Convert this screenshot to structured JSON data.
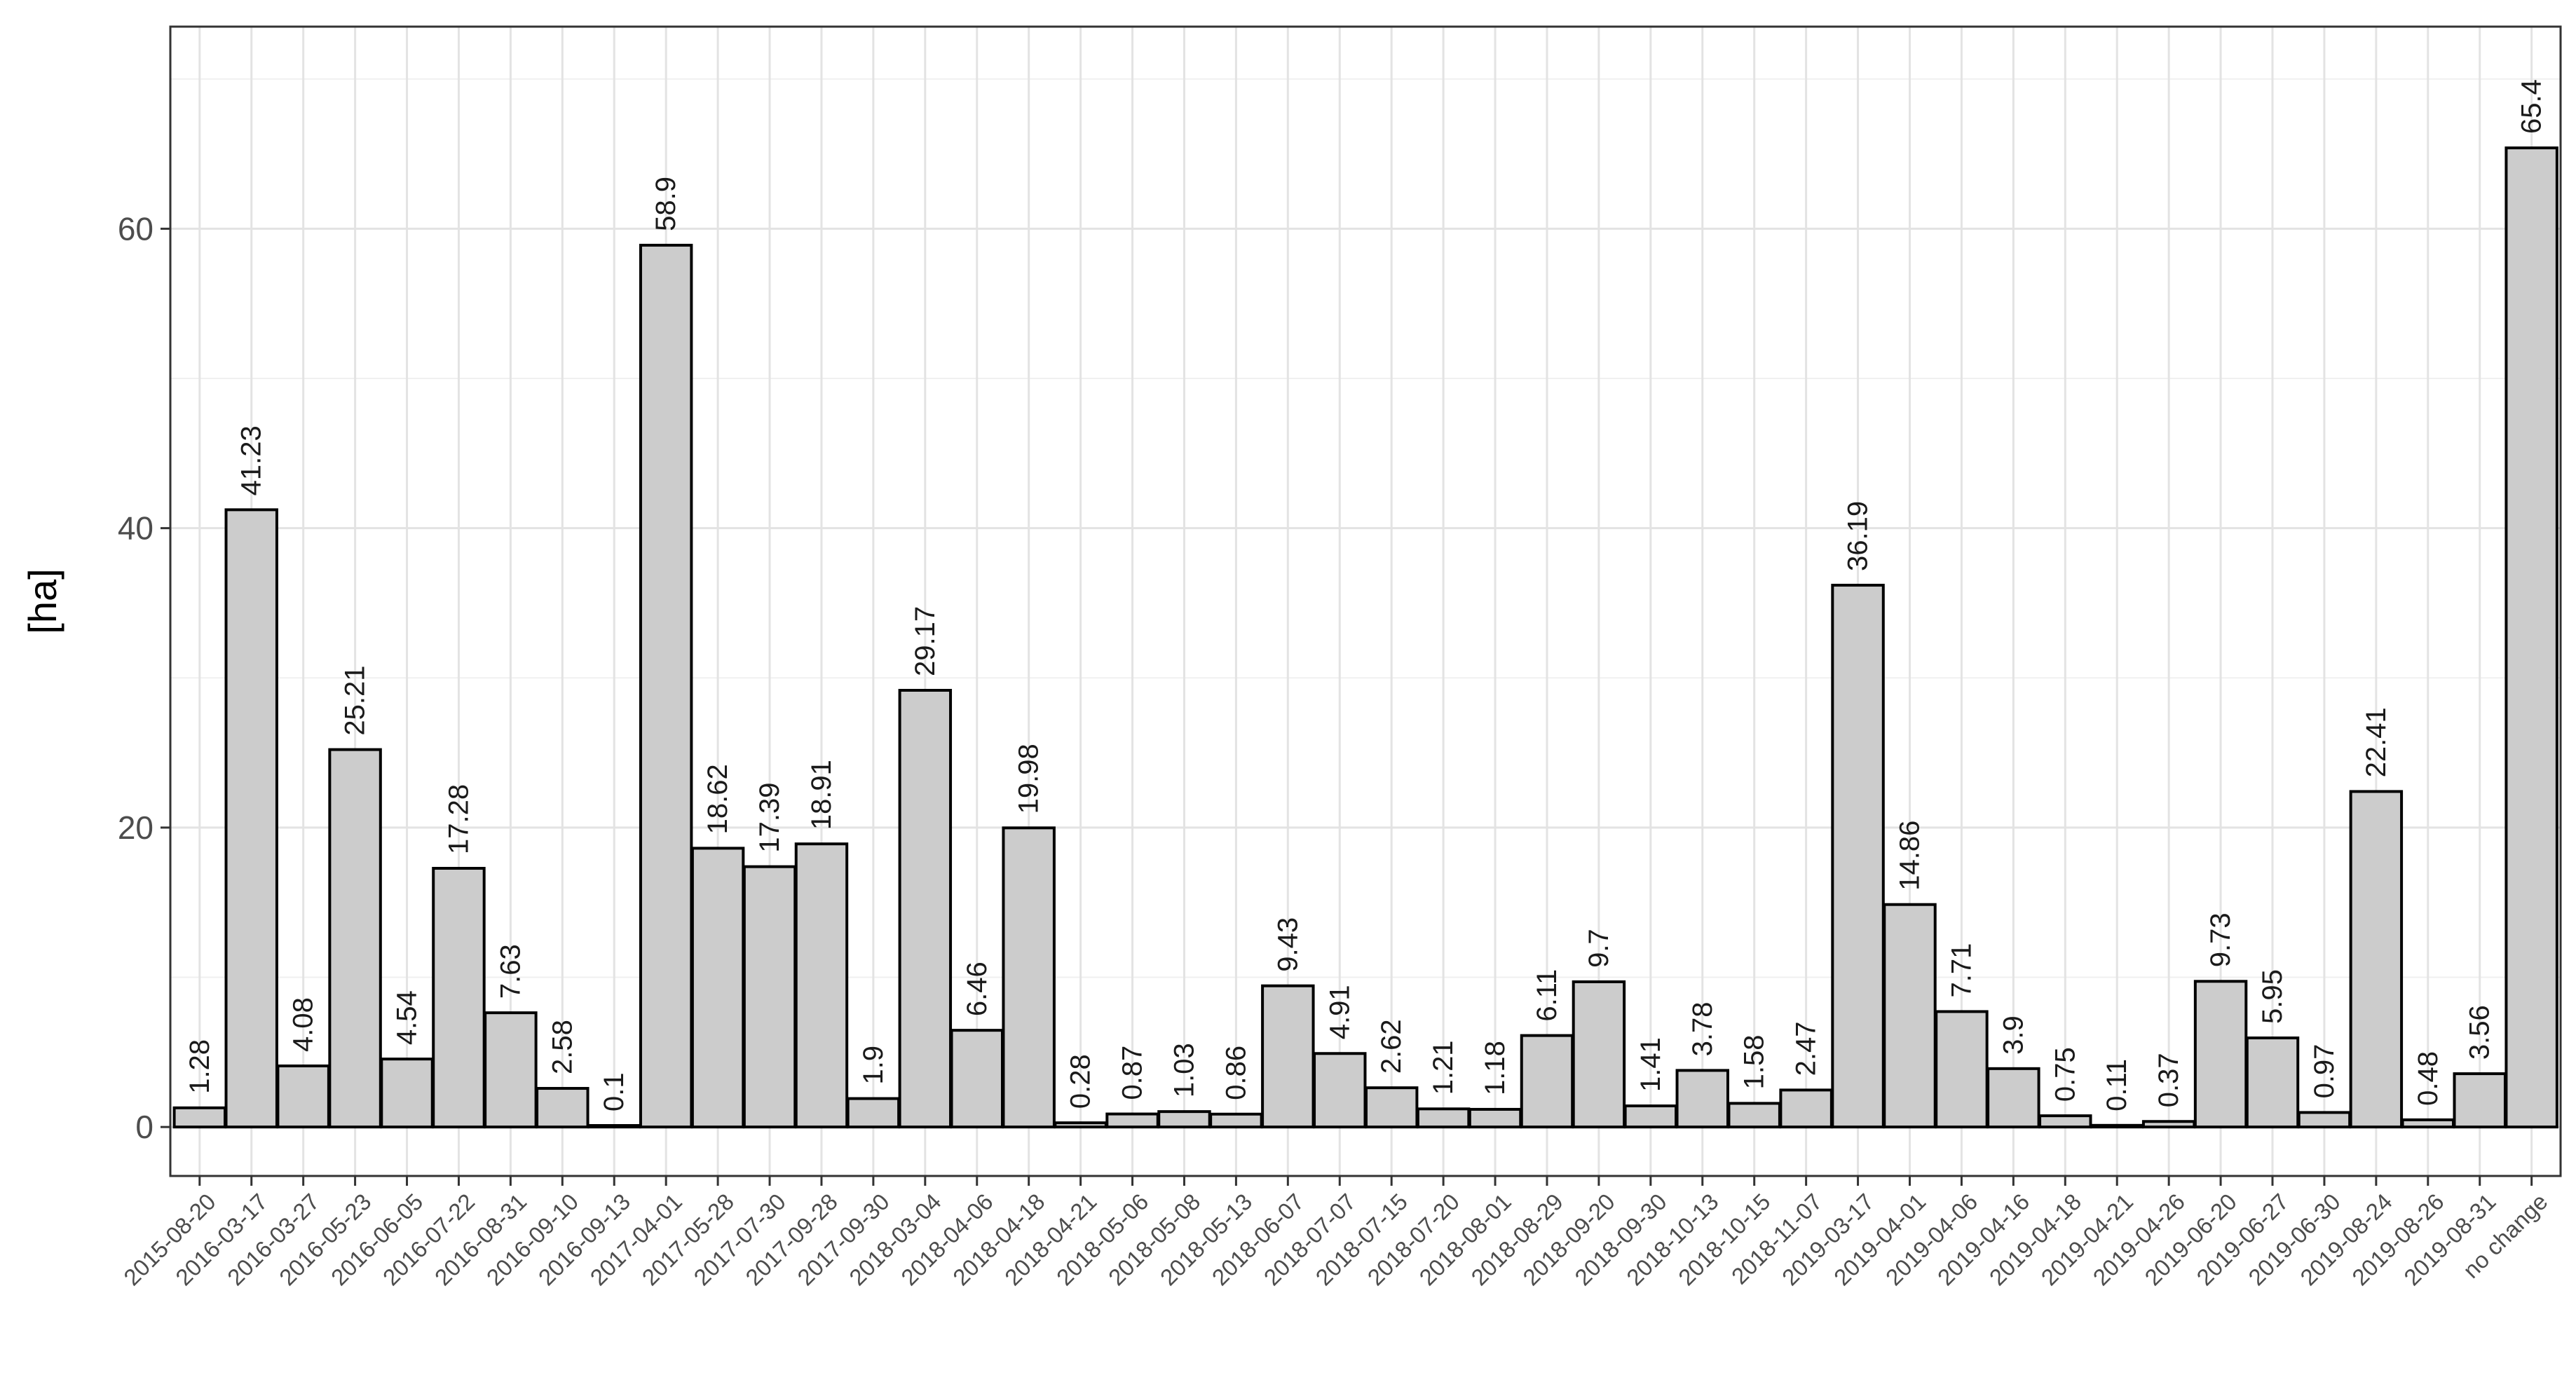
{
  "chart_data": {
    "type": "bar",
    "title": "",
    "xlabel": "",
    "ylabel": "[ha]",
    "ylim": [
      -3.27,
      73.5
    ],
    "y_ticks": [
      0,
      20,
      40,
      60
    ],
    "grid": true,
    "bar_color": "#cccccc",
    "bar_border_color": "#000000",
    "categories": [
      "2015-08-20",
      "2016-03-17",
      "2016-03-27",
      "2016-05-23",
      "2016-06-05",
      "2016-07-22",
      "2016-08-31",
      "2016-09-10",
      "2016-09-13",
      "2017-04-01",
      "2017-05-28",
      "2017-07-30",
      "2017-09-28",
      "2017-09-30",
      "2018-03-04",
      "2018-04-06",
      "2018-04-18",
      "2018-04-21",
      "2018-05-06",
      "2018-05-08",
      "2018-05-13",
      "2018-06-07",
      "2018-07-07",
      "2018-07-15",
      "2018-07-20",
      "2018-08-01",
      "2018-08-29",
      "2018-09-20",
      "2018-09-30",
      "2018-10-13",
      "2018-10-15",
      "2018-11-07",
      "2019-03-17",
      "2019-04-01",
      "2019-04-06",
      "2019-04-16",
      "2019-04-18",
      "2019-04-21",
      "2019-04-26",
      "2019-06-20",
      "2019-06-27",
      "2019-06-30",
      "2019-08-24",
      "2019-08-26",
      "2019-08-31",
      "no change"
    ],
    "values": [
      1.28,
      41.23,
      4.08,
      25.21,
      4.54,
      17.28,
      7.63,
      2.58,
      0.1,
      58.9,
      18.62,
      17.39,
      18.91,
      1.9,
      29.17,
      6.46,
      19.98,
      0.28,
      0.87,
      1.03,
      0.86,
      9.43,
      4.91,
      2.62,
      1.21,
      1.18,
      6.11,
      9.7,
      1.41,
      3.78,
      1.58,
      2.47,
      36.19,
      14.86,
      7.71,
      3.9,
      0.75,
      0.11,
      0.37,
      9.73,
      5.95,
      0.97,
      22.41,
      0.48,
      3.56,
      65.4
    ],
    "value_labels": [
      "1.28",
      "41.23",
      "4.08",
      "25.21",
      "4.54",
      "17.28",
      "7.63",
      "2.58",
      "0.1",
      "58.9",
      "18.62",
      "17.39",
      "18.91",
      "1.9",
      "29.17",
      "6.46",
      "19.98",
      "0.28",
      "0.87",
      "1.03",
      "0.86",
      "9.43",
      "4.91",
      "2.62",
      "1.21",
      "1.18",
      "6.11",
      "9.7",
      "1.41",
      "3.78",
      "1.58",
      "2.47",
      "36.19",
      "14.86",
      "7.71",
      "3.9",
      "0.75",
      "0.11",
      "0.37",
      "9.73",
      "5.95",
      "0.97",
      "22.41",
      "0.48",
      "3.56",
      "65.4"
    ]
  }
}
